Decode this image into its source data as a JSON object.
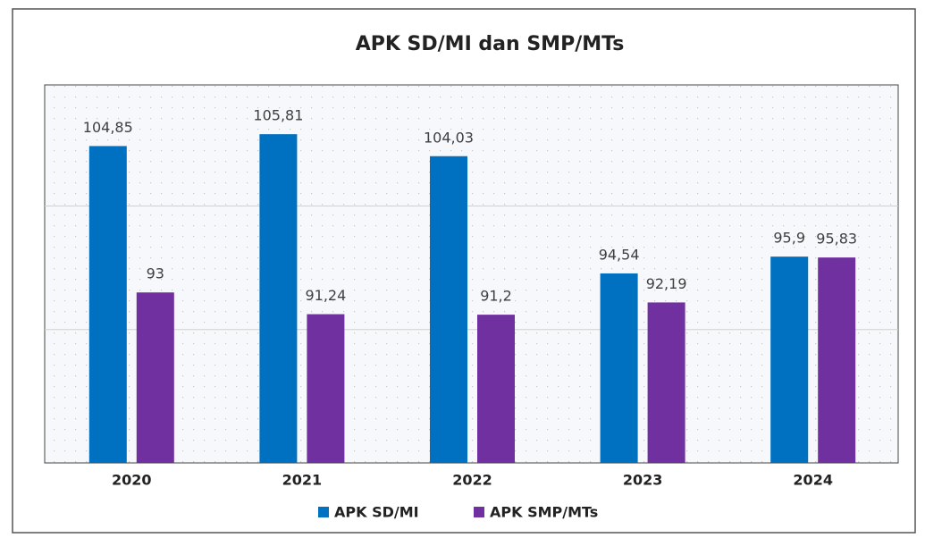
{
  "chart_data": {
    "type": "bar",
    "title": "APK SD/MI dan SMP/MTs",
    "categories": [
      "2020",
      "2021",
      "2022",
      "2023",
      "2024"
    ],
    "series": [
      {
        "name": "APK SD/MI",
        "color": "#0070c0",
        "values": [
          104.85,
          105.81,
          104.03,
          94.54,
          95.9
        ],
        "value_labels": [
          "104,85",
          "105,81",
          "104,03",
          "94,54",
          "95,9"
        ]
      },
      {
        "name": "APK SMP/MTs",
        "color": "#7030a0",
        "values": [
          93,
          91.24,
          91.2,
          92.19,
          95.83
        ],
        "value_labels": [
          "93",
          "91,24",
          "91,2",
          "92,19",
          "95,83"
        ]
      }
    ],
    "ylim": [
      79.2,
      109.8
    ],
    "yticks": [
      90,
      100
    ],
    "grid": true,
    "legend": "bottom"
  }
}
